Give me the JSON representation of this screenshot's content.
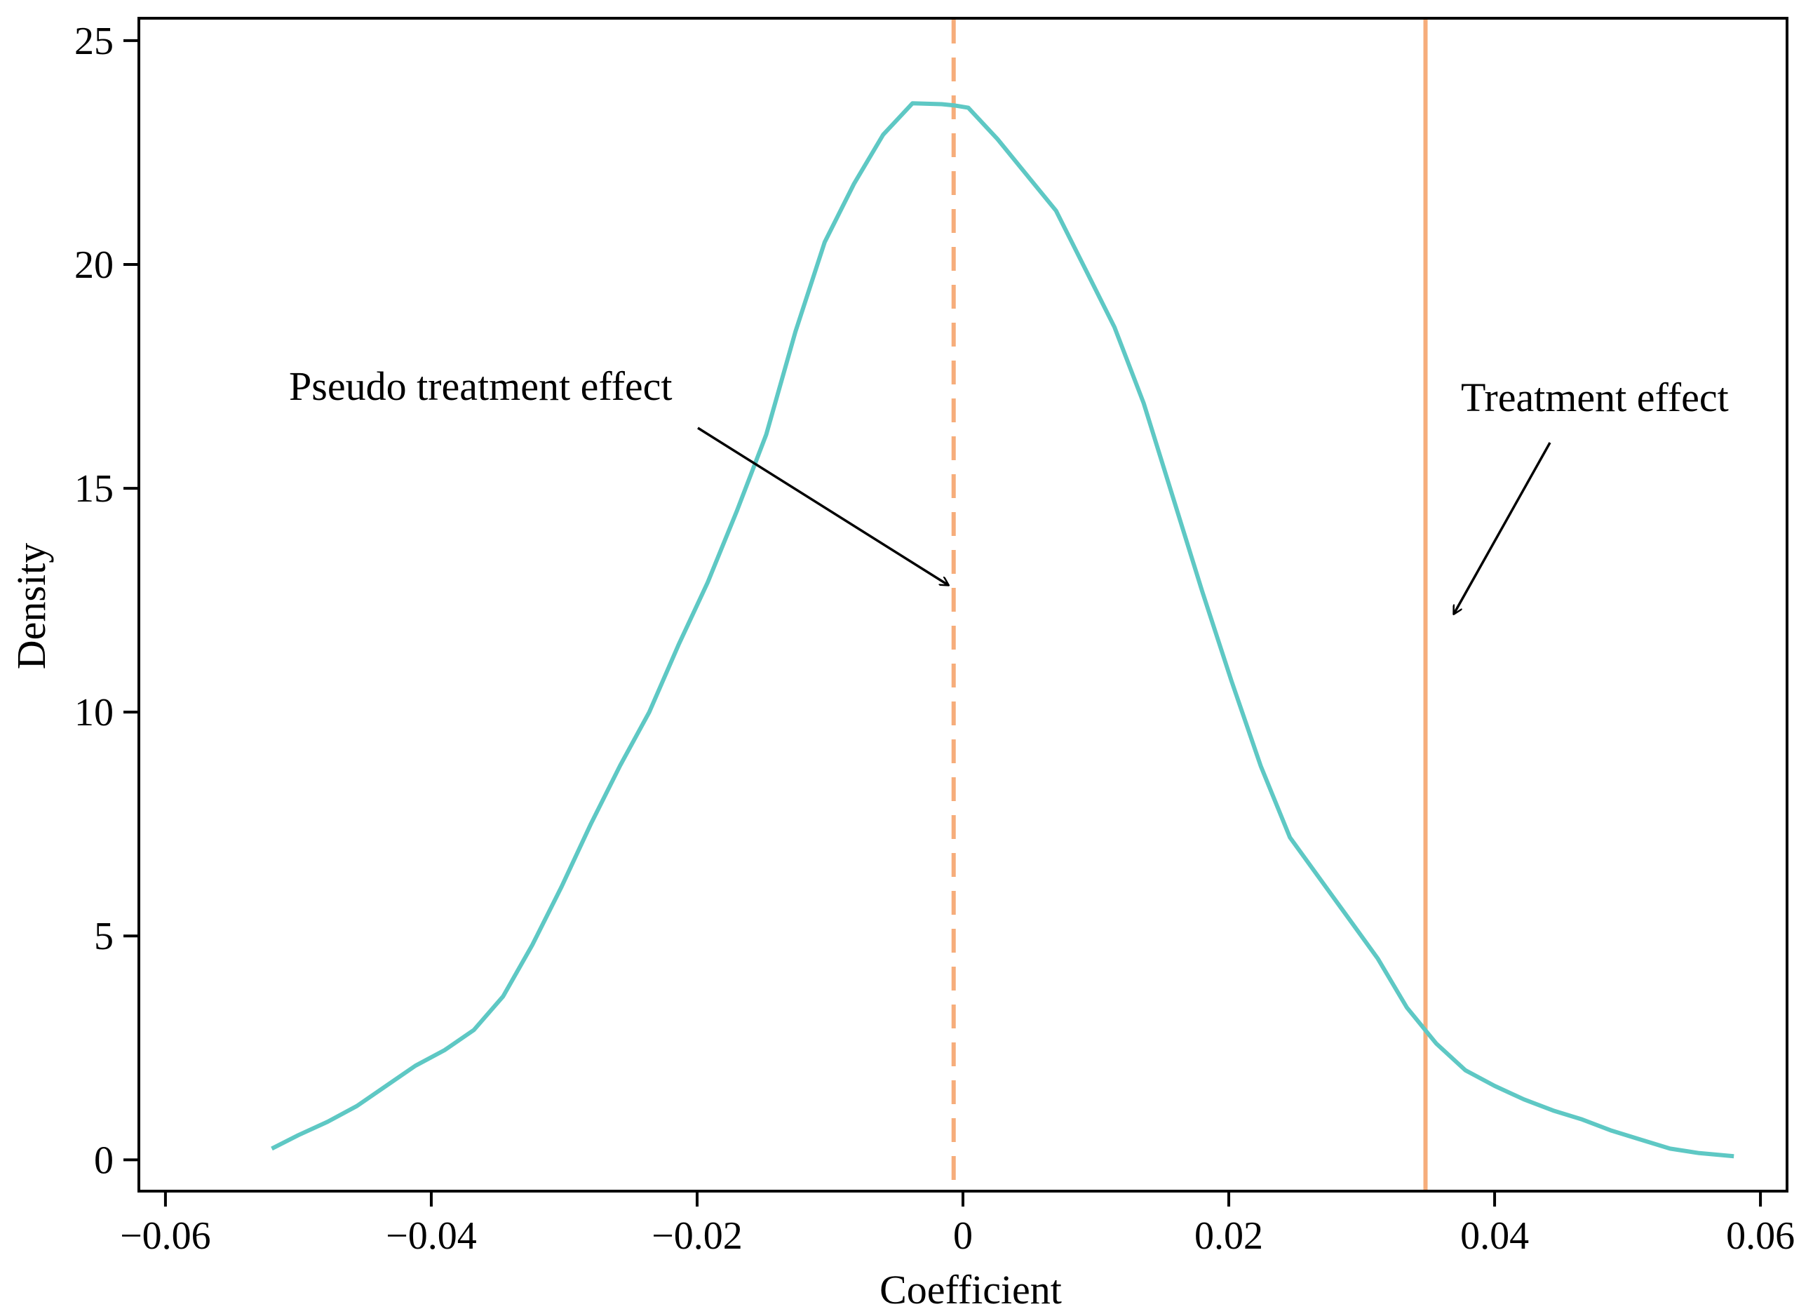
{
  "chart_data": {
    "type": "line",
    "title": "",
    "xlabel": "Coefficient",
    "ylabel": "Density",
    "xlim": [
      -0.062,
      0.062
    ],
    "ylim": [
      -0.7,
      25.5
    ],
    "xticks": [
      -0.06,
      -0.04,
      -0.02,
      0,
      0.02,
      0.04,
      0.06
    ],
    "xtick_labels": [
      "−0.06",
      "−0.04",
      "−0.02",
      "0",
      "0.02",
      "0.04",
      "0.06"
    ],
    "yticks": [
      0,
      5,
      10,
      15,
      20,
      25
    ],
    "ytick_labels": [
      "0",
      "5",
      "10",
      "15",
      "20",
      "25"
    ],
    "grid": false,
    "series": [
      {
        "name": "Density",
        "color": "#5ec8c4",
        "x": [
          -0.052,
          -0.05,
          -0.0478,
          -0.0456,
          -0.0434,
          -0.0412,
          -0.039,
          -0.0368,
          -0.0346,
          -0.0324,
          -0.0302,
          -0.028,
          -0.0258,
          -0.0236,
          -0.0214,
          -0.0192,
          -0.017,
          -0.0148,
          -0.0126,
          -0.0104,
          -0.0082,
          -0.006,
          -0.0038,
          -0.0016,
          -0.0006,
          0.0004,
          0.0026,
          0.0048,
          0.007,
          0.0092,
          0.0114,
          0.0136,
          0.0158,
          0.018,
          0.0202,
          0.0224,
          0.0246,
          0.0268,
          0.029,
          0.0312,
          0.0334,
          0.0356,
          0.0378,
          0.04,
          0.0422,
          0.0444,
          0.0466,
          0.0488,
          0.051,
          0.0532,
          0.0554,
          0.058
        ],
        "y": [
          0.25,
          0.55,
          0.85,
          1.2,
          1.65,
          2.1,
          2.45,
          2.9,
          3.65,
          4.8,
          6.1,
          7.5,
          8.8,
          10.0,
          11.5,
          12.9,
          14.5,
          16.2,
          18.5,
          20.5,
          21.8,
          22.9,
          23.6,
          23.58,
          23.55,
          23.5,
          22.8,
          22.0,
          21.2,
          19.9,
          18.6,
          16.9,
          14.8,
          12.7,
          10.7,
          8.8,
          7.2,
          6.3,
          5.4,
          4.5,
          3.4,
          2.6,
          2.0,
          1.65,
          1.35,
          1.1,
          0.9,
          0.65,
          0.45,
          0.25,
          0.15,
          0.08
        ]
      }
    ],
    "reference_lines": [
      {
        "name": "Pseudo treatment effect",
        "x": -0.0007,
        "style": "dashed",
        "color": "#f6ad7b"
      },
      {
        "name": "Treatment effect",
        "x": 0.0348,
        "style": "solid",
        "color": "#f6ad7b"
      }
    ],
    "annotations": [
      {
        "text": "Pseudo treatment effect",
        "target_x": -0.0007,
        "target_y": 12.9
      },
      {
        "text": "Treatment effect",
        "target_x": 0.0348,
        "target_y": 12.2
      }
    ]
  }
}
